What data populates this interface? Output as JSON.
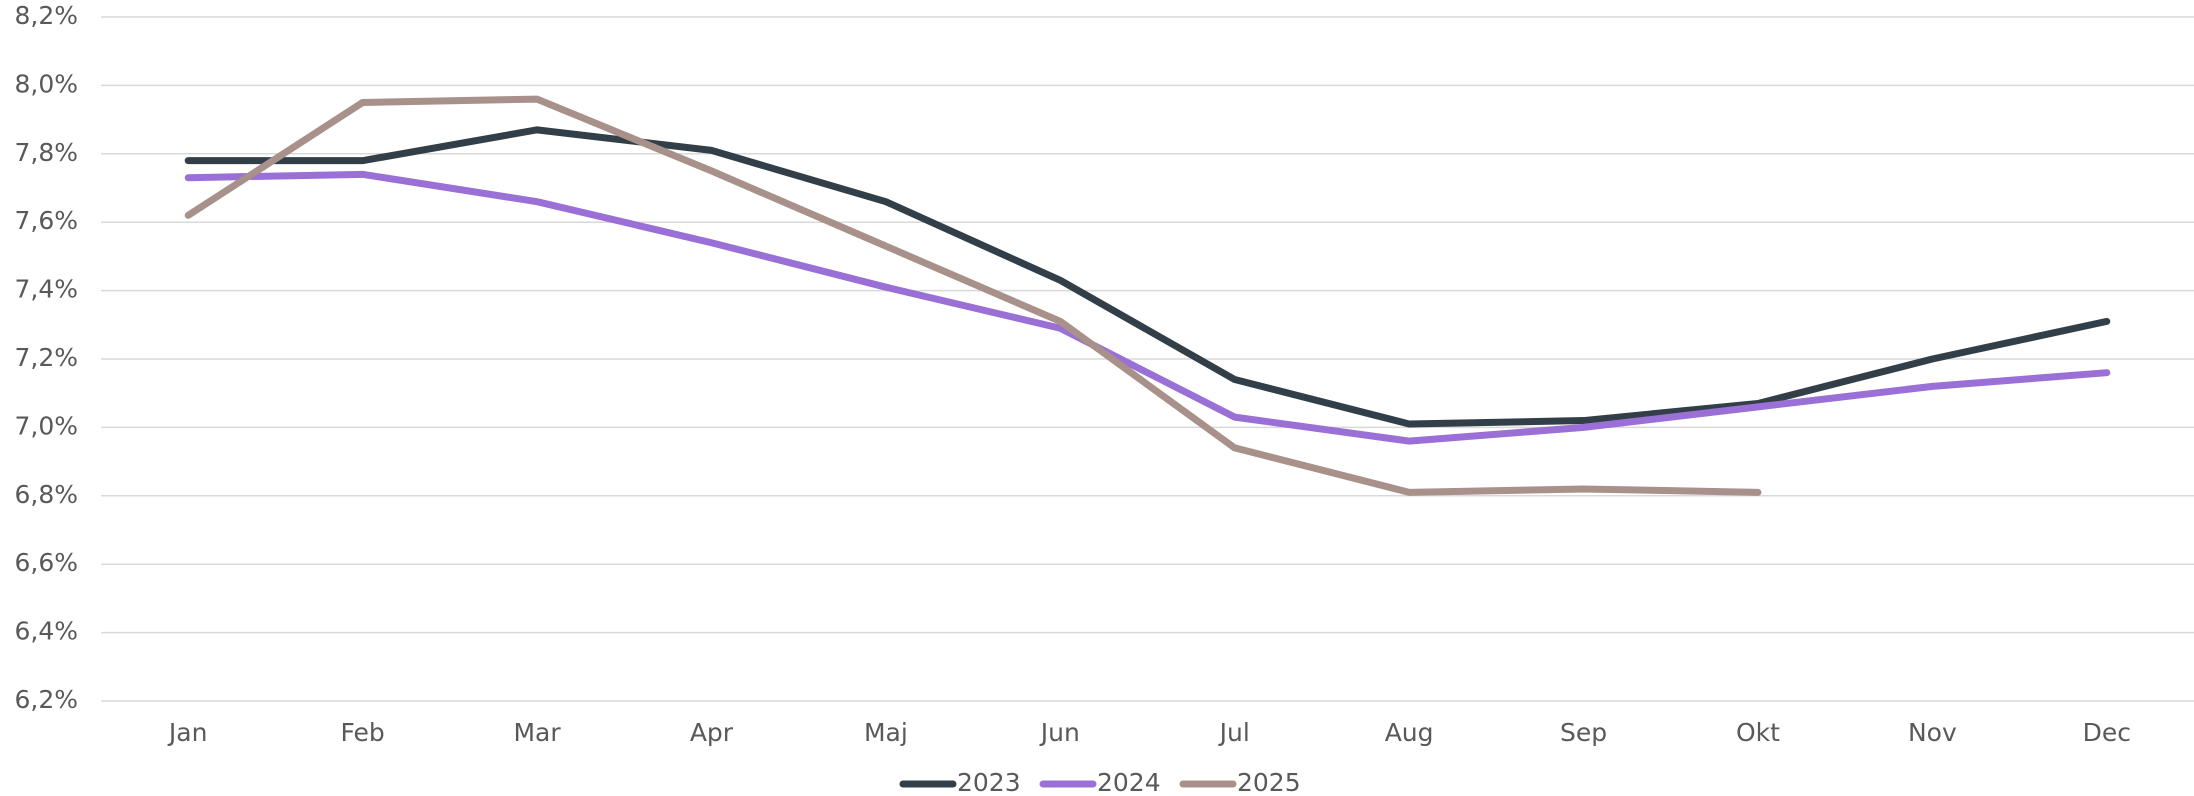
{
  "chart_data": {
    "type": "line",
    "categories": [
      "Jan",
      "Feb",
      "Mar",
      "Apr",
      "Maj",
      "Jun",
      "Jul",
      "Aug",
      "Sep",
      "Okt",
      "Nov",
      "Dec"
    ],
    "series": [
      {
        "name": "2023",
        "color": "#333f48",
        "values": [
          7.78,
          7.78,
          7.87,
          7.81,
          7.66,
          7.43,
          7.14,
          7.01,
          7.02,
          7.07,
          7.2,
          7.31
        ]
      },
      {
        "name": "2024",
        "color": "#9a6fd6",
        "values": [
          7.73,
          7.74,
          7.66,
          7.54,
          7.41,
          7.29,
          7.03,
          6.96,
          7.0,
          7.06,
          7.12,
          7.16
        ]
      },
      {
        "name": "2025",
        "color": "#a8918a",
        "values": [
          7.62,
          7.95,
          7.96,
          7.75,
          7.53,
          7.31,
          6.94,
          6.81,
          6.82,
          6.81,
          null,
          null
        ]
      }
    ],
    "ylim": [
      6.2,
      8.2
    ],
    "yticks": [
      {
        "value": 6.2,
        "label": "6,2%"
      },
      {
        "value": 6.4,
        "label": "6,4%"
      },
      {
        "value": 6.6,
        "label": "6,6%"
      },
      {
        "value": 6.8,
        "label": "6,8%"
      },
      {
        "value": 7.0,
        "label": "7,0%"
      },
      {
        "value": 7.2,
        "label": "7,2%"
      },
      {
        "value": 7.4,
        "label": "7,4%"
      },
      {
        "value": 7.6,
        "label": "7,6%"
      },
      {
        "value": 7.8,
        "label": "7,8%"
      },
      {
        "value": 8.0,
        "label": "8,0%"
      },
      {
        "value": 8.2,
        "label": "8,2%"
      }
    ],
    "grid": true,
    "legend": "bottom"
  }
}
